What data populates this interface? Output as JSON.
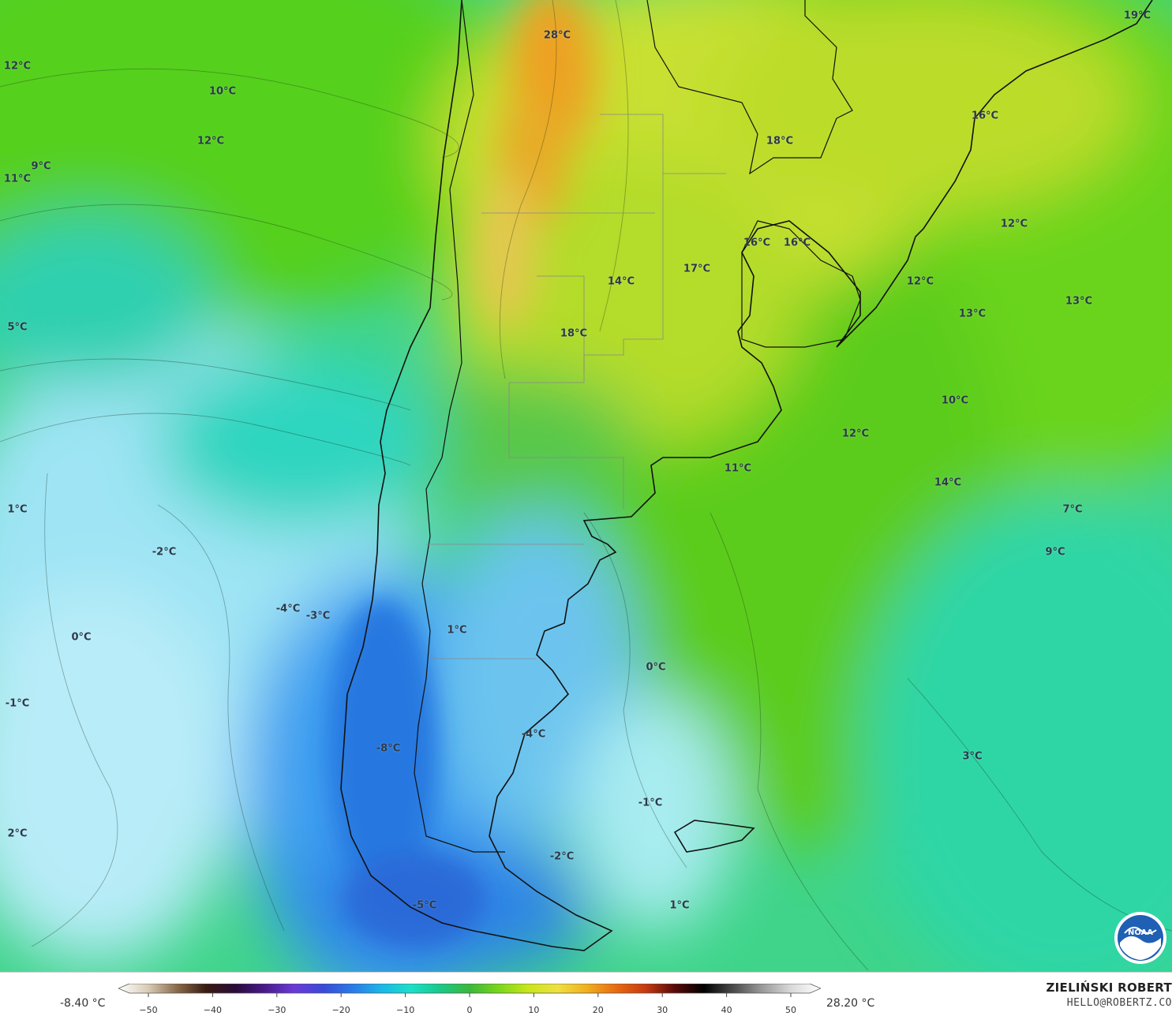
{
  "map": {
    "temperature_labels": [
      {
        "text": "28°C"
      },
      {
        "text": "19°C"
      },
      {
        "text": "12°C"
      },
      {
        "text": "10°C"
      },
      {
        "text": "12°C"
      },
      {
        "text": "9°C"
      },
      {
        "text": "11°C"
      },
      {
        "text": "16°C"
      },
      {
        "text": "18°C"
      },
      {
        "text": "12°C"
      },
      {
        "text": "16°C"
      },
      {
        "text": "16°C"
      },
      {
        "text": "17°C"
      },
      {
        "text": "14°C"
      },
      {
        "text": "12°C"
      },
      {
        "text": "13°C"
      },
      {
        "text": "5°C"
      },
      {
        "text": "13°C"
      },
      {
        "text": "18°C"
      },
      {
        "text": "10°C"
      },
      {
        "text": "12°C"
      },
      {
        "text": "11°C"
      },
      {
        "text": "14°C"
      },
      {
        "text": "1°C"
      },
      {
        "text": "7°C"
      },
      {
        "text": "-2°C"
      },
      {
        "text": "9°C"
      },
      {
        "text": "-4°C"
      },
      {
        "text": "-3°C"
      },
      {
        "text": "0°C"
      },
      {
        "text": "1°C"
      },
      {
        "text": "0°C"
      },
      {
        "text": "-1°C"
      },
      {
        "text": "-4°C"
      },
      {
        "text": "-8°C"
      },
      {
        "text": "3°C"
      },
      {
        "text": "-1°C"
      },
      {
        "text": "2°C"
      },
      {
        "text": "-2°C"
      },
      {
        "text": "1°C"
      },
      {
        "text": "-5°C"
      }
    ]
  },
  "legend": {
    "min_label": "-8.40 °C",
    "max_label": "28.20 °C",
    "ticks": [
      "−50",
      "−40",
      "−30",
      "−20",
      "−10",
      "0",
      "10",
      "20",
      "30",
      "40",
      "50"
    ],
    "colors": [
      "#ffffff",
      "#d9cdb8",
      "#8a6a4a",
      "#3a1a10",
      "#2a0b3a",
      "#4a1a8a",
      "#6a3ad8",
      "#3a4ad8",
      "#2a7ae8",
      "#1ab8e8",
      "#1ae0c8",
      "#1ac888",
      "#3ab83a",
      "#7ad61a",
      "#c8e61a",
      "#f0e040",
      "#f0b020",
      "#e86a10",
      "#c83a10",
      "#5a0a0a",
      "#000000",
      "#4a4a4a",
      "#9a9a9a",
      "#dadada",
      "#ffffff"
    ]
  },
  "credits": {
    "author": "ZIELIŃSKI ROBERT",
    "email": "HELLO@ROBERTZ.CO",
    "logo_text": "NOAA"
  }
}
